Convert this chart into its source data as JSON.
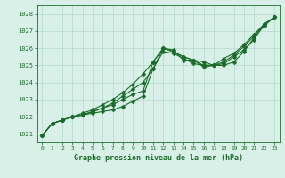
{
  "bg_color": "#d8f0e8",
  "grid_color": "#b8ddd0",
  "line_color": "#1a6b2a",
  "title": "Graphe pression niveau de la mer (hPa)",
  "xlim": [
    -0.5,
    23.5
  ],
  "ylim": [
    1020.5,
    1028.5
  ],
  "yticks": [
    1021,
    1022,
    1023,
    1024,
    1025,
    1026,
    1027,
    1028
  ],
  "xticks": [
    0,
    1,
    2,
    3,
    4,
    5,
    6,
    7,
    8,
    9,
    10,
    11,
    12,
    13,
    14,
    15,
    16,
    17,
    18,
    19,
    20,
    21,
    22,
    23
  ],
  "series": [
    [
      1020.9,
      1021.6,
      1021.8,
      1022.0,
      1022.1,
      1022.2,
      1022.3,
      1022.4,
      1022.6,
      1022.9,
      1023.2,
      1024.8,
      1025.8,
      1025.7,
      1025.4,
      1025.1,
      1025.0,
      1025.0,
      1025.0,
      1025.2,
      1025.8,
      1026.6,
      1027.3,
      1027.8
    ],
    [
      1020.9,
      1021.6,
      1021.8,
      1022.0,
      1022.1,
      1022.3,
      1022.5,
      1022.7,
      1023.0,
      1023.3,
      1023.5,
      1025.2,
      1026.0,
      1025.9,
      1025.3,
      1025.3,
      1024.9,
      1025.0,
      1025.1,
      1025.5,
      1025.9,
      1026.5,
      1027.4,
      1027.8
    ],
    [
      1020.9,
      1021.6,
      1021.8,
      1022.0,
      1022.1,
      1022.3,
      1022.5,
      1022.8,
      1023.2,
      1023.6,
      1024.0,
      1024.8,
      1026.0,
      1025.8,
      1025.5,
      1025.3,
      1025.0,
      1025.0,
      1025.2,
      1025.6,
      1026.1,
      1026.7,
      1027.4,
      1027.8
    ],
    [
      1020.9,
      1021.6,
      1021.8,
      1022.0,
      1022.2,
      1022.4,
      1022.7,
      1023.0,
      1023.4,
      1023.9,
      1024.5,
      1025.2,
      1026.0,
      1025.8,
      1025.5,
      1025.3,
      1025.2,
      1025.0,
      1025.4,
      1025.7,
      1026.2,
      1026.8,
      1027.4,
      1027.8
    ]
  ],
  "marker_size": 2.5,
  "linewidth": 0.8
}
